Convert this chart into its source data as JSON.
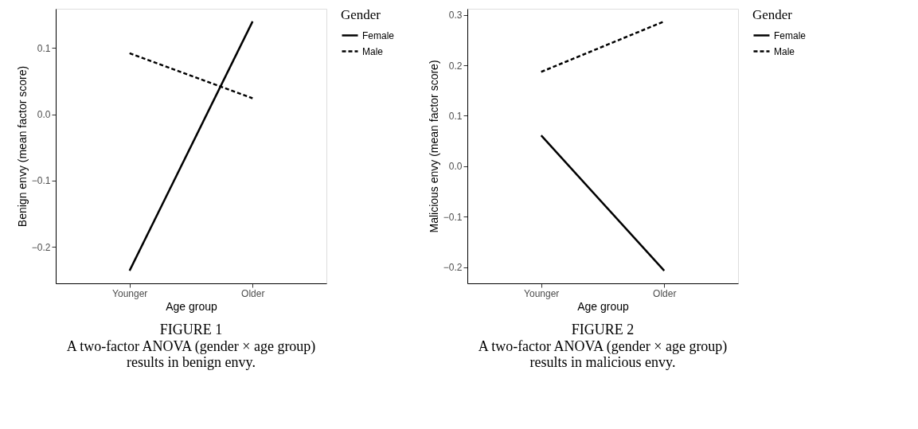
{
  "chart_data": [
    {
      "type": "line",
      "title": "FIGURE 1",
      "subtitle": "A two-factor ANOVA (gender × age group) results in benign envy.",
      "xlabel": "Age group",
      "ylabel": "Benign envy (mean factor score)",
      "legend_title": "Gender",
      "legend": "right",
      "grid": false,
      "marker": "none",
      "categories": [
        "Younger",
        "Older"
      ],
      "ylim": [
        -0.255,
        0.159
      ],
      "yticks": [
        -0.2,
        -0.1,
        {
          "value": 0,
          "label": "0.0"
        },
        0.1
      ],
      "series": [
        {
          "name": "Female",
          "color": "#000000",
          "line_style": "solid",
          "values": [
            -0.236,
            0.14
          ]
        },
        {
          "name": "Male",
          "color": "#000000",
          "line_style": "dashed",
          "values": [
            0.092,
            0.024
          ]
        }
      ]
    },
    {
      "type": "line",
      "title": "FIGURE 2",
      "subtitle": "A two-factor ANOVA (gender × age group) results in malicious envy.",
      "xlabel": "Age group",
      "ylabel": "Malicious envy (mean factor score)",
      "legend_title": "Gender",
      "legend": "right",
      "grid": false,
      "marker": "none",
      "categories": [
        "Younger",
        "Older"
      ],
      "ylim": [
        -0.232,
        0.312
      ],
      "yticks": [
        -0.2,
        -0.1,
        {
          "value": 0,
          "label": "0.0"
        },
        0.1,
        0.2,
        0.3
      ],
      "series": [
        {
          "name": "Female",
          "color": "#000000",
          "line_style": "solid",
          "values": [
            0.061,
            -0.207
          ]
        },
        {
          "name": "Male",
          "color": "#000000",
          "line_style": "dashed",
          "values": [
            0.187,
            0.287
          ]
        }
      ]
    }
  ]
}
